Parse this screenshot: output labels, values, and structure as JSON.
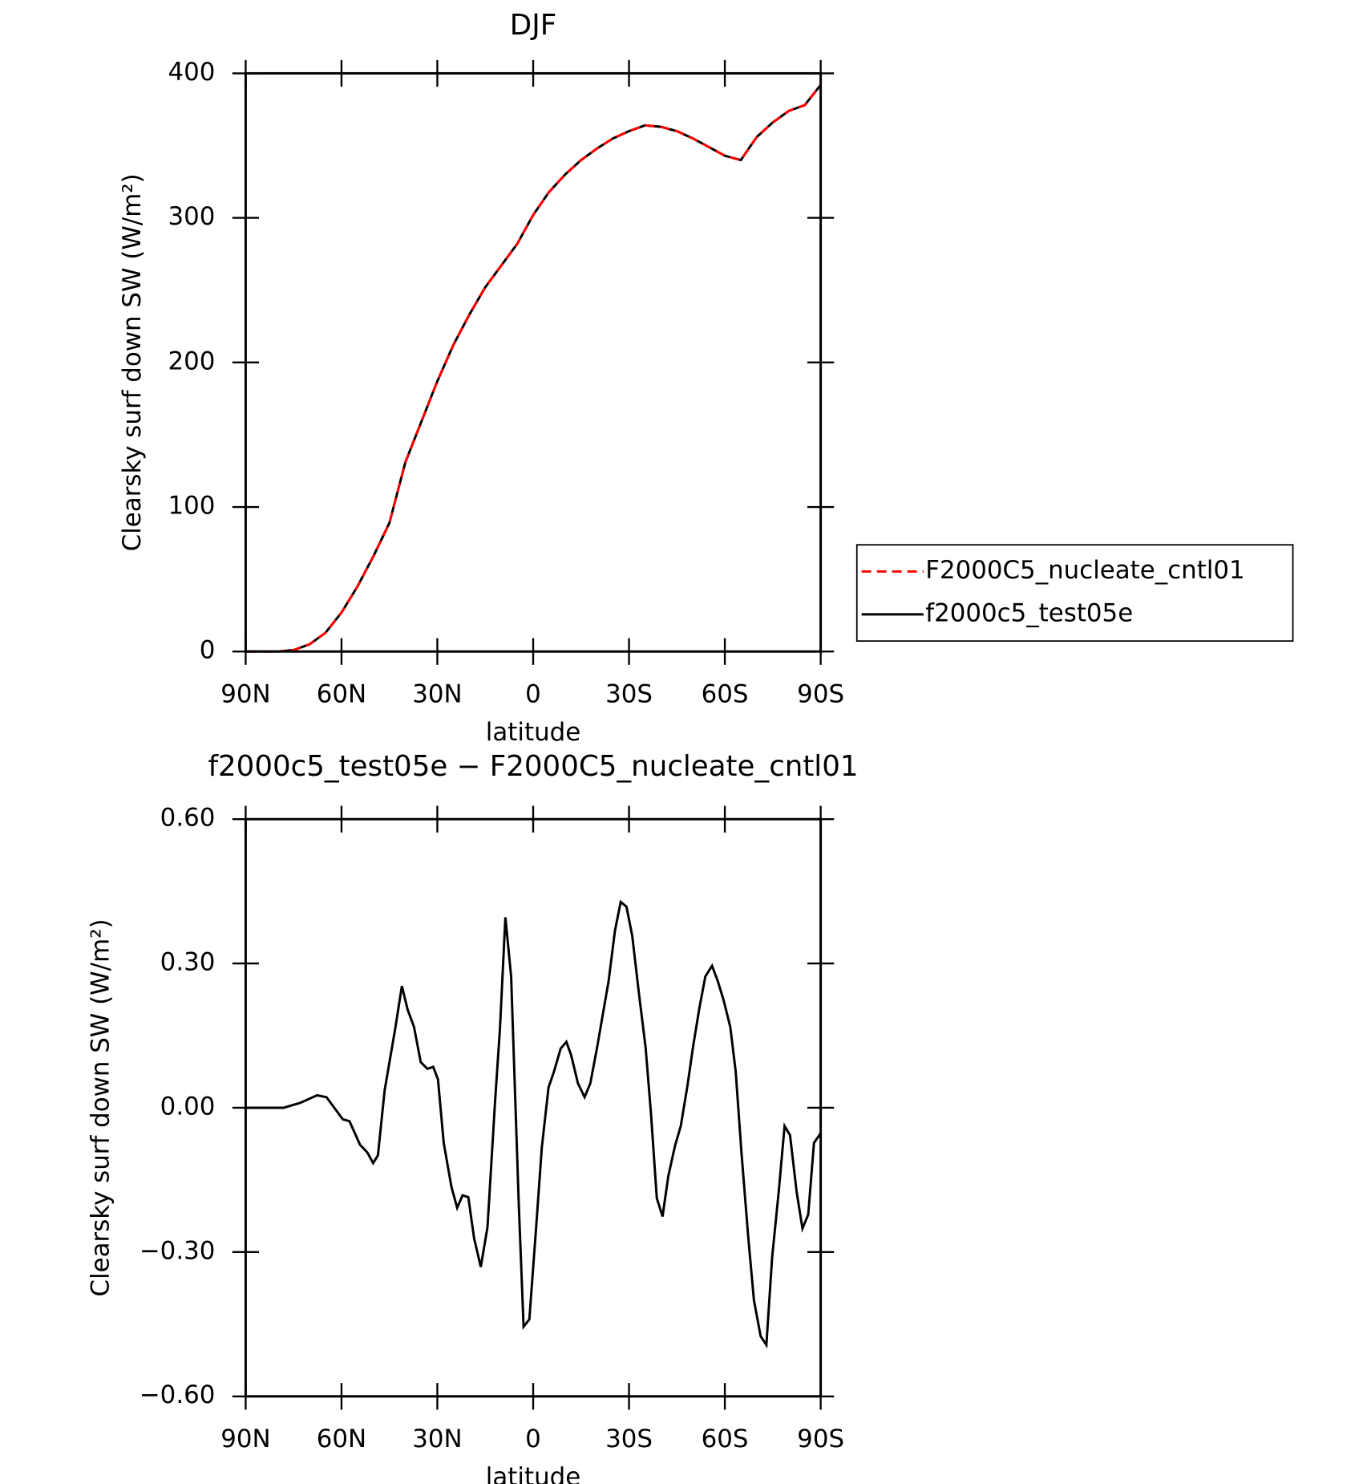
{
  "chart_data": [
    {
      "type": "line",
      "title": "DJF",
      "x_label": "latitude",
      "y_label": "Clearsky surf down SW (W/m²)",
      "x": [
        90,
        85,
        80,
        75,
        70,
        65,
        60,
        55,
        50,
        45,
        40,
        35,
        30,
        25,
        20,
        15,
        10,
        5,
        0,
        -5,
        -10,
        -15,
        -20,
        -25,
        -30,
        -35,
        -40,
        -45,
        -50,
        -55,
        -60,
        -65,
        -70,
        -75,
        -80,
        -85,
        -90
      ],
      "series": [
        {
          "name": "F2000C5_nucleate_cntl01",
          "color": "#ff0000",
          "dash": "dashed",
          "values": [
            0,
            0,
            0,
            1,
            5,
            13,
            27,
            45,
            66,
            89,
            131,
            159,
            187,
            212,
            233,
            252,
            267,
            282,
            302,
            318,
            330,
            340,
            348,
            355,
            360,
            364,
            363,
            360,
            355,
            349,
            343,
            340,
            356,
            366,
            374,
            378,
            392
          ]
        },
        {
          "name": "f2000c5_test05e",
          "color": "#000000",
          "dash": "solid",
          "values": [
            0,
            0,
            0,
            1,
            5,
            13,
            27,
            45,
            66,
            89,
            131,
            159,
            187,
            212,
            233,
            252,
            267,
            282,
            302,
            318,
            330,
            340,
            348,
            355,
            360,
            364,
            363,
            360,
            355,
            349,
            343,
            340,
            356,
            366,
            374,
            378,
            392
          ]
        }
      ],
      "xlim": [
        90,
        -90
      ],
      "xticks": [
        {
          "value": 90,
          "label": "90N"
        },
        {
          "value": 60,
          "label": "60N"
        },
        {
          "value": 30,
          "label": "30N"
        },
        0,
        {
          "value": -30,
          "label": "30S"
        },
        {
          "value": -60,
          "label": "60S"
        },
        {
          "value": -90,
          "label": "90S"
        }
      ],
      "ylim": [
        0,
        400
      ],
      "yticks": [
        0,
        100,
        200,
        300,
        400
      ],
      "legend": "right"
    },
    {
      "type": "line",
      "title": "f2000c5_test05e − F2000C5_nucleate_cntl01",
      "x_label": "latitude",
      "y_label": "Clearsky surf down SW (W/m²)",
      "x": [
        90,
        78.1,
        73,
        67.6,
        64.7,
        59.6,
        57.5,
        54.2,
        51.9,
        50.1,
        48.6,
        46.5,
        43.2,
        41.1,
        39.3,
        37.3,
        35.2,
        33.1,
        31.3,
        29.8,
        28,
        25.6,
        23.8,
        22.1,
        20.3,
        18.5,
        16.4,
        14.3,
        11.9,
        10.4,
        8.7,
        6.9,
        4.5,
        3,
        1.2,
        -0.9,
        -2.7,
        -4.8,
        -6.5,
        -8.6,
        -10.4,
        -11.9,
        -14,
        -16.1,
        -17.9,
        -20,
        -23.6,
        -25.6,
        -27.4,
        -29.2,
        -31,
        -33.1,
        -35.2,
        -36.9,
        -38.7,
        -40.5,
        -42.3,
        -44.4,
        -46.2,
        -48.3,
        -50.1,
        -52.1,
        -53.9,
        -56,
        -57.8,
        -59.6,
        -61.7,
        -63.4,
        -65.2,
        -67.3,
        -69.1,
        -71.2,
        -73,
        -74.8,
        -76.9,
        -78.7,
        -80.4,
        -82.5,
        -84.3,
        -86.1,
        -87.9,
        -90
      ],
      "values": [
        0,
        0,
        0.01,
        0.026,
        0.022,
        -0.024,
        -0.028,
        -0.077,
        -0.093,
        -0.115,
        -0.099,
        0.036,
        0.164,
        0.253,
        0.204,
        0.168,
        0.095,
        0.081,
        0.085,
        0.059,
        -0.073,
        -0.164,
        -0.208,
        -0.182,
        -0.186,
        -0.271,
        -0.331,
        -0.248,
        0.016,
        0.164,
        0.396,
        0.273,
        -0.202,
        -0.455,
        -0.44,
        -0.251,
        -0.083,
        0.042,
        0.075,
        0.123,
        0.137,
        0.109,
        0.051,
        0.022,
        0.051,
        0.125,
        0.263,
        0.368,
        0.428,
        0.418,
        0.358,
        0.238,
        0.125,
        -0.014,
        -0.188,
        -0.226,
        -0.142,
        -0.079,
        -0.038,
        0.046,
        0.129,
        0.21,
        0.273,
        0.295,
        0.263,
        0.224,
        0.168,
        0.075,
        -0.093,
        -0.267,
        -0.4,
        -0.475,
        -0.493,
        -0.311,
        -0.172,
        -0.038,
        -0.057,
        -0.176,
        -0.251,
        -0.222,
        -0.073,
        -0.053
      ],
      "color": "#000000",
      "xlim": [
        90,
        -90
      ],
      "xticks": [
        {
          "value": 90,
          "label": "90N"
        },
        {
          "value": 60,
          "label": "60N"
        },
        {
          "value": 30,
          "label": "30N"
        },
        0,
        {
          "value": -30,
          "label": "30S"
        },
        {
          "value": -60,
          "label": "60S"
        },
        {
          "value": -90,
          "label": "90S"
        }
      ],
      "ylim": [
        -0.6,
        0.6
      ],
      "yticks": [
        {
          "value": -0.6,
          "label": "−0.60"
        },
        {
          "value": -0.3,
          "label": "−0.30"
        },
        {
          "value": 0,
          "label": "0.00"
        },
        {
          "value": 0.3,
          "label": "0.30"
        },
        {
          "value": 0.6,
          "label": "0.60"
        }
      ]
    }
  ]
}
